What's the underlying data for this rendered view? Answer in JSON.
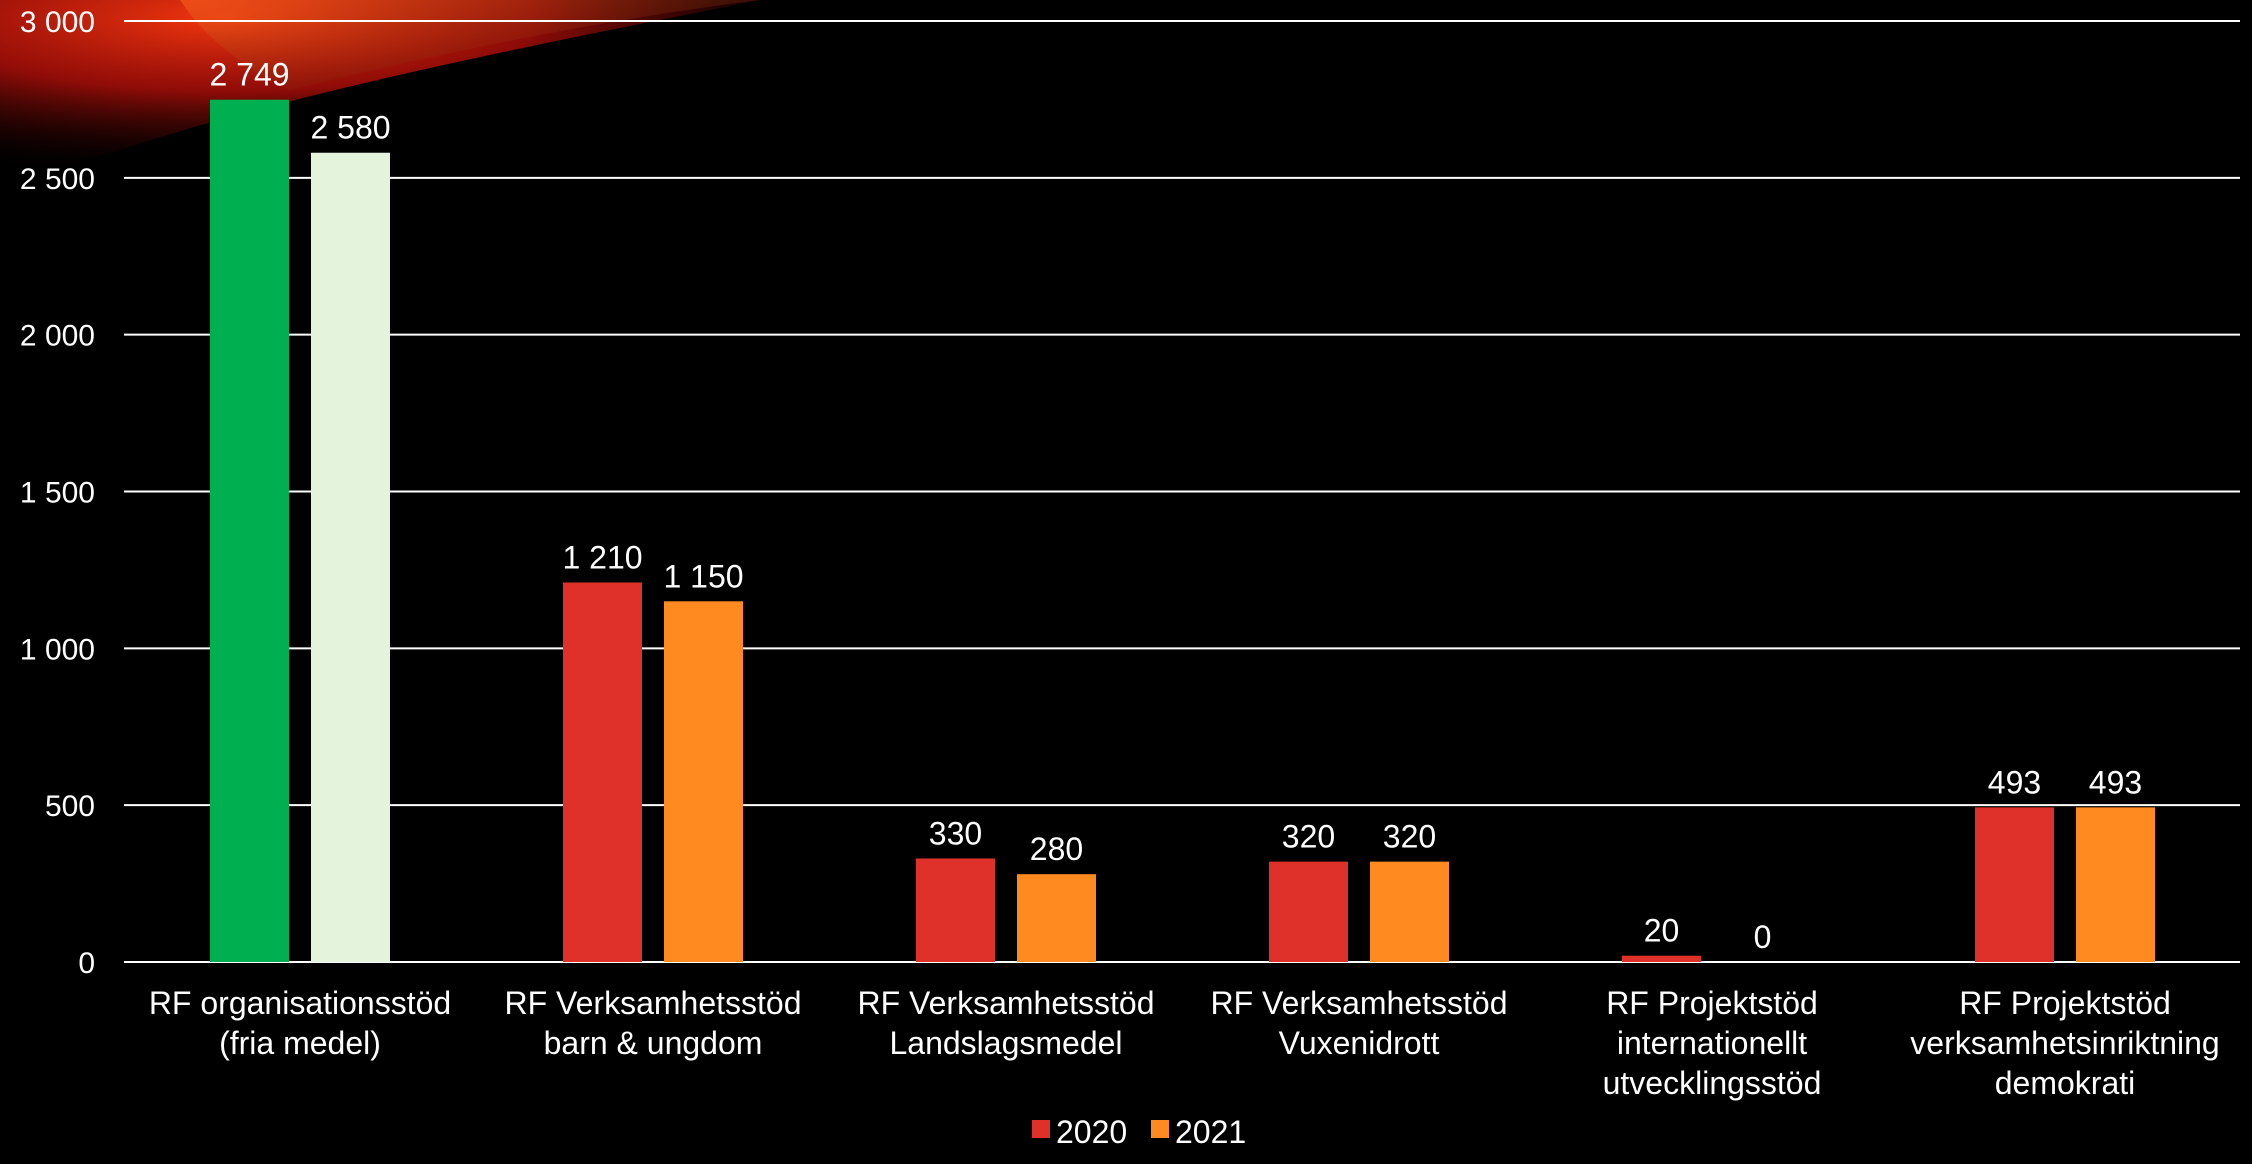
{
  "chart_data": {
    "type": "bar",
    "title": "",
    "xlabel": "",
    "ylabel": "",
    "ylim": [
      0,
      3000
    ],
    "yticks": [
      0,
      500,
      1000,
      1500,
      2000,
      2500,
      3000
    ],
    "ytick_labels": [
      "0",
      "500",
      "1 000",
      "1 500",
      "2 000",
      "2 500",
      "3 000"
    ],
    "grid": true,
    "legend_position": "bottom",
    "categories": [
      [
        "RF organisationsstöd",
        "(fria medel)"
      ],
      [
        "RF Verksamhetsstöd",
        "barn & ungdom"
      ],
      [
        "RF Verksamhetsstöd",
        "Landslagsmedel"
      ],
      [
        "RF Verksamhetsstöd",
        "Vuxenidrott"
      ],
      [
        "RF Projektstöd",
        "internationellt",
        "utvecklingsstöd"
      ],
      [
        "RF Projektstöd",
        "verksamhetsinriktning",
        "demokrati"
      ]
    ],
    "series": [
      {
        "name": "2020",
        "color": "#e0302a",
        "values": [
          2749,
          1210,
          330,
          320,
          20,
          493
        ],
        "labels": [
          "2 749",
          "1 210",
          "330",
          "320",
          "20",
          "493"
        ],
        "point_colors": [
          "#00b050",
          null,
          null,
          null,
          null,
          null
        ]
      },
      {
        "name": "2021",
        "color": "#ff8a20",
        "values": [
          2580,
          1150,
          280,
          320,
          0,
          493
        ],
        "labels": [
          "2 580",
          "1 150",
          "280",
          "320",
          "0",
          "493"
        ],
        "point_colors": [
          "#e4f3dc",
          null,
          null,
          null,
          null,
          null
        ]
      }
    ],
    "colors": {
      "background": "#000000",
      "gridline": "#ffffff",
      "text": "#ffffff",
      "accent_glow": "#e0302a"
    }
  }
}
